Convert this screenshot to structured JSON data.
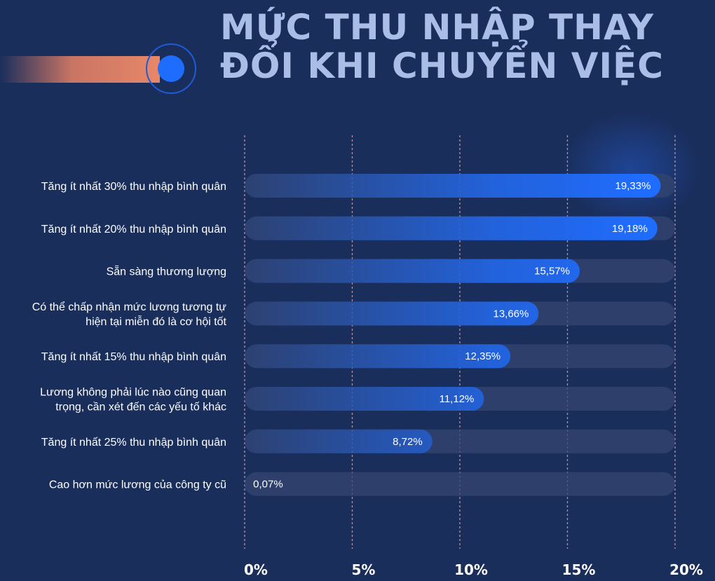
{
  "title": {
    "line1": "MỨC THU NHẬP THAY",
    "line2": "ĐỔI KHI CHUYỂN VIỆC"
  },
  "colors": {
    "background": "#1a2e5c",
    "title": "#a9bde6",
    "bar": "#1f6dff",
    "track": "#34466f",
    "gridline": "#c98a86",
    "accent_orange": "#e88768"
  },
  "chart_data": {
    "type": "bar",
    "orientation": "horizontal",
    "categories": [
      "Tăng ít nhất 30% thu nhập bình quân",
      "Tăng ít nhất 20% thu nhập bình quân",
      "Sẵn sàng thương lượng",
      "Có thể chấp nhận mức lương tương tự hiện tại miễn đó là cơ hội tốt",
      "Tăng ít nhất 15% thu nhập bình quân",
      "Lương không phải lúc nào cũng quan trọng, cần xét đến các yếu tố khác",
      "Tăng ít nhất 25% thu nhập bình quân",
      "Cao hơn mức lương của công ty cũ"
    ],
    "category_lines": [
      [
        "Tăng ít nhất 30% thu nhập bình quân"
      ],
      [
        "Tăng ít nhất 20% thu nhập bình quân"
      ],
      [
        "Sẵn sàng thương lượng"
      ],
      [
        "Có thể chấp nhận mức lương tương tự",
        "hiện tại miễn đó là cơ hội tốt"
      ],
      [
        "Tăng ít nhất 15% thu nhập bình quân"
      ],
      [
        "Lương không phải lúc nào cũng quan",
        "trọng, cần xét đến các yếu tố khác"
      ],
      [
        "Tăng ít nhất 25% thu nhập bình quân"
      ],
      [
        "Cao hơn mức lương của công ty cũ"
      ]
    ],
    "values": [
      19.33,
      19.18,
      15.57,
      13.66,
      12.35,
      11.12,
      8.72,
      0.07
    ],
    "value_labels": [
      "19,33%",
      "19,18%",
      "15,57%",
      "13,66%",
      "12,35%",
      "11,12%",
      "8,72%",
      "0,07%"
    ],
    "xlim": [
      0,
      20
    ],
    "ticks": [
      0,
      5,
      10,
      15,
      20
    ],
    "tick_labels": [
      "0%",
      "5%",
      "10%",
      "15%",
      "20%"
    ],
    "grid": "vertical dashed"
  }
}
